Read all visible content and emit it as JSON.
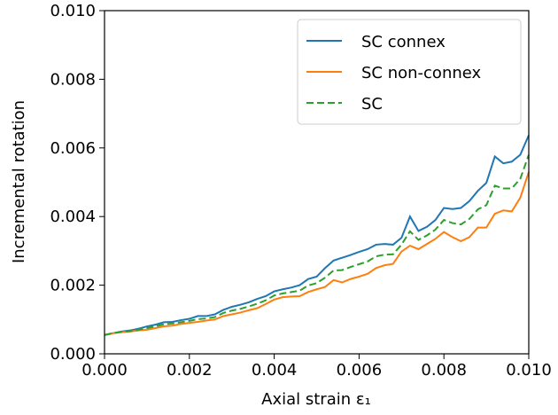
{
  "chart_data": {
    "type": "line",
    "xlabel": "Axial strain ε₁",
    "ylabel": "Incremental rotation",
    "x": [
      0,
      0.0002,
      0.0004,
      0.0006,
      0.0008,
      0.001,
      0.0012,
      0.0014,
      0.0016,
      0.0018,
      0.002,
      0.0022,
      0.0024,
      0.0026,
      0.0028,
      0.003,
      0.0032,
      0.0034,
      0.0036,
      0.0038,
      0.004,
      0.0042,
      0.0044,
      0.0046,
      0.0048,
      0.005,
      0.0052,
      0.0054,
      0.0056,
      0.0058,
      0.006,
      0.0062,
      0.0064,
      0.0066,
      0.0068,
      0.007,
      0.0072,
      0.0074,
      0.0076,
      0.0078,
      0.008,
      0.0082,
      0.0084,
      0.0086,
      0.0088,
      0.009,
      0.0092,
      0.0094,
      0.0096,
      0.0098,
      0.01
    ],
    "series": [
      {
        "name": "SC connex",
        "color": "#1f77b4",
        "linestyle": "solid",
        "values": [
          0.00055,
          0.0006,
          0.00065,
          0.00068,
          0.00073,
          0.0008,
          0.00085,
          0.00092,
          0.00093,
          0.00098,
          0.00102,
          0.0011,
          0.0011,
          0.00115,
          0.00128,
          0.00137,
          0.00143,
          0.0015,
          0.0016,
          0.00168,
          0.00182,
          0.00188,
          0.00193,
          0.002,
          0.00218,
          0.00225,
          0.0025,
          0.00272,
          0.0028,
          0.00288,
          0.00297,
          0.00305,
          0.00318,
          0.0032,
          0.00318,
          0.00338,
          0.004,
          0.00358,
          0.0037,
          0.0039,
          0.00425,
          0.00422,
          0.00425,
          0.00445,
          0.00475,
          0.00498,
          0.00575,
          0.00555,
          0.0056,
          0.0058,
          0.00637
        ]
      },
      {
        "name": "SC non-connex",
        "color": "#ff7f0e",
        "linestyle": "solid",
        "values": [
          0.00055,
          0.0006,
          0.00063,
          0.00065,
          0.00068,
          0.0007,
          0.00075,
          0.0008,
          0.00082,
          0.00087,
          0.0009,
          0.00093,
          0.00097,
          0.001,
          0.0011,
          0.00115,
          0.0012,
          0.00127,
          0.00133,
          0.00145,
          0.00158,
          0.00165,
          0.00167,
          0.00168,
          0.0018,
          0.00188,
          0.00195,
          0.00215,
          0.00208,
          0.00218,
          0.00225,
          0.00233,
          0.0025,
          0.00258,
          0.00262,
          0.00298,
          0.00315,
          0.00305,
          0.0032,
          0.00335,
          0.00355,
          0.0034,
          0.00328,
          0.0034,
          0.00368,
          0.00368,
          0.00408,
          0.00418,
          0.00415,
          0.00455,
          0.0053
        ]
      },
      {
        "name": "SC",
        "color": "#2ca02c",
        "linestyle": "dashed",
        "values": [
          0.00055,
          0.0006,
          0.00064,
          0.00066,
          0.0007,
          0.00075,
          0.0008,
          0.00086,
          0.00088,
          0.00092,
          0.00096,
          0.00101,
          0.00103,
          0.00107,
          0.00119,
          0.00126,
          0.00131,
          0.00138,
          0.00146,
          0.00156,
          0.0017,
          0.00176,
          0.0018,
          0.00184,
          0.00199,
          0.00206,
          0.00222,
          0.00243,
          0.00244,
          0.00253,
          0.00261,
          0.00269,
          0.00284,
          0.00289,
          0.0029,
          0.00318,
          0.00357,
          0.00332,
          0.00345,
          0.00362,
          0.0039,
          0.00381,
          0.00377,
          0.00393,
          0.00421,
          0.00433,
          0.0049,
          0.00482,
          0.00482,
          0.0051,
          0.0058
        ]
      }
    ],
    "xlim": [
      0,
      0.01
    ],
    "ylim": [
      0,
      0.01
    ],
    "xticks": [
      {
        "value": 0,
        "label": "0.000"
      },
      {
        "value": 0.002,
        "label": "0.002"
      },
      {
        "value": 0.004,
        "label": "0.004"
      },
      {
        "value": 0.006,
        "label": "0.006"
      },
      {
        "value": 0.008,
        "label": "0.008"
      },
      {
        "value": 0.01,
        "label": "0.010"
      }
    ],
    "yticks": [
      {
        "value": 0,
        "label": "0.000"
      },
      {
        "value": 0.002,
        "label": "0.002"
      },
      {
        "value": 0.004,
        "label": "0.004"
      },
      {
        "value": 0.006,
        "label": "0.006"
      },
      {
        "value": 0.008,
        "label": "0.008"
      },
      {
        "value": 0.01,
        "label": "0.010"
      }
    ],
    "grid": false,
    "legend": "upper right"
  }
}
